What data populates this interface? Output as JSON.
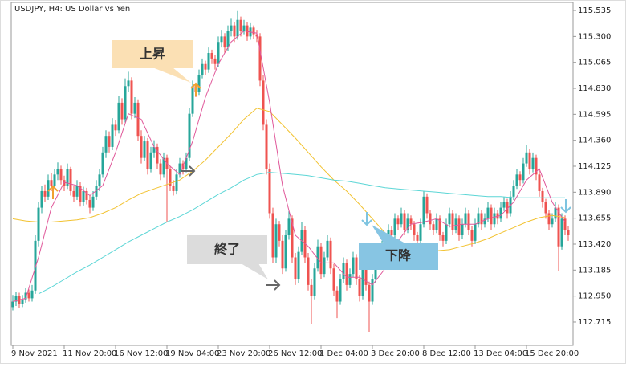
{
  "chart_data": {
    "type": "candlestick",
    "title": "USDJPY, H4:  US Dollar vs Yen",
    "up_color": "#26a69a",
    "down_color": "#ef5350",
    "xlim": [
      -0.5,
      174.5
    ],
    "ylim": [
      112.504,
      115.608
    ],
    "yticks": [
      115.535,
      {
        "value": 115.3,
        "label": "115.300"
      },
      115.065,
      {
        "value": 114.83,
        "label": "114.830"
      },
      114.595,
      {
        "value": 114.36,
        "label": "114.360"
      },
      114.125,
      {
        "value": 113.89,
        "label": "113.890"
      },
      113.655,
      {
        "value": 113.42,
        "label": "113.420"
      },
      113.185,
      {
        "value": 112.95,
        "label": "112.950"
      },
      112.715
    ],
    "xticks": [
      {
        "value": 0,
        "label": "9 Nov 2021"
      },
      {
        "value": 16,
        "label": "11 Nov 20:00"
      },
      {
        "value": 32,
        "label": "16 Nov 12:00"
      },
      {
        "value": 48,
        "label": "19 Nov 04:00"
      },
      {
        "value": 64,
        "label": "23 Nov 20:00"
      },
      {
        "value": 80,
        "label": "26 Nov 12:00"
      },
      {
        "value": 96,
        "label": "1 Dec 04:00"
      },
      {
        "value": 112,
        "label": "3 Dec 20:00"
      },
      {
        "value": 128,
        "label": "8 Dec 12:00"
      },
      {
        "value": 144,
        "label": "13 Dec 04:00"
      },
      {
        "value": 160,
        "label": "15 Dec 20:00"
      }
    ],
    "ohlc": [
      [
        112.85,
        112.96,
        112.82,
        112.9
      ],
      [
        112.9,
        112.99,
        112.86,
        112.95
      ],
      [
        112.95,
        112.98,
        112.84,
        112.88
      ],
      [
        112.88,
        112.96,
        112.85,
        112.92
      ],
      [
        112.92,
        113.02,
        112.89,
        112.98
      ],
      [
        112.98,
        113.01,
        112.9,
        112.93
      ],
      [
        112.93,
        113.05,
        112.9,
        113.0
      ],
      [
        113.0,
        113.5,
        112.97,
        113.45
      ],
      [
        113.45,
        113.8,
        113.4,
        113.75
      ],
      [
        113.75,
        113.95,
        113.7,
        113.9
      ],
      [
        113.9,
        113.96,
        113.8,
        113.85
      ],
      [
        113.85,
        114.05,
        113.82,
        114.0
      ],
      [
        114.0,
        114.06,
        113.9,
        113.95
      ],
      [
        113.95,
        114.1,
        113.92,
        114.05
      ],
      [
        114.05,
        114.16,
        114.0,
        114.1
      ],
      [
        114.1,
        114.13,
        113.96,
        114.0
      ],
      [
        114.0,
        114.04,
        113.9,
        113.95
      ],
      [
        113.95,
        114.15,
        113.92,
        114.1
      ],
      [
        114.1,
        114.12,
        113.86,
        113.9
      ],
      [
        113.9,
        113.95,
        113.8,
        113.85
      ],
      [
        113.85,
        114.0,
        113.82,
        113.95
      ],
      [
        113.95,
        113.98,
        113.76,
        113.8
      ],
      [
        113.8,
        113.94,
        113.77,
        113.9
      ],
      [
        113.9,
        113.93,
        113.78,
        113.82
      ],
      [
        113.82,
        113.86,
        113.7,
        113.75
      ],
      [
        113.75,
        113.9,
        113.72,
        113.85
      ],
      [
        113.85,
        114.0,
        113.82,
        113.95
      ],
      [
        113.95,
        114.1,
        113.9,
        114.05
      ],
      [
        114.05,
        114.3,
        114.02,
        114.25
      ],
      [
        114.25,
        114.45,
        114.2,
        114.4
      ],
      [
        114.4,
        114.44,
        114.25,
        114.3
      ],
      [
        114.3,
        114.56,
        114.27,
        114.5
      ],
      [
        114.5,
        114.54,
        114.4,
        114.45
      ],
      [
        114.45,
        114.76,
        114.42,
        114.7
      ],
      [
        114.7,
        114.74,
        114.5,
        114.55
      ],
      [
        114.55,
        114.92,
        114.52,
        114.85
      ],
      [
        114.85,
        114.98,
        114.8,
        114.9
      ],
      [
        114.9,
        114.93,
        114.55,
        114.6
      ],
      [
        114.6,
        114.75,
        114.56,
        114.7
      ],
      [
        114.7,
        114.73,
        114.35,
        114.4
      ],
      [
        114.4,
        114.45,
        114.15,
        114.2
      ],
      [
        114.2,
        114.4,
        114.17,
        114.35
      ],
      [
        114.35,
        114.38,
        114.05,
        114.1
      ],
      [
        114.1,
        114.3,
        114.07,
        114.25
      ],
      [
        114.25,
        114.36,
        114.2,
        114.3
      ],
      [
        114.3,
        114.33,
        114.1,
        114.15
      ],
      [
        114.15,
        114.19,
        114.0,
        114.05
      ],
      [
        114.05,
        114.25,
        114.02,
        114.2
      ],
      [
        114.2,
        114.23,
        113.62,
        114.1
      ],
      [
        114.1,
        114.13,
        113.9,
        113.95
      ],
      [
        113.95,
        114.0,
        113.86,
        113.9
      ],
      [
        113.9,
        114.1,
        113.87,
        114.05
      ],
      [
        114.05,
        114.2,
        114.02,
        114.15
      ],
      [
        114.15,
        114.18,
        114.05,
        114.1
      ],
      [
        114.1,
        114.25,
        114.07,
        114.2
      ],
      [
        114.2,
        114.65,
        114.17,
        114.6
      ],
      [
        114.6,
        114.9,
        114.57,
        114.85
      ],
      [
        114.85,
        114.88,
        114.75,
        114.8
      ],
      [
        114.8,
        115.0,
        114.77,
        114.95
      ],
      [
        114.95,
        115.1,
        114.92,
        115.05
      ],
      [
        115.05,
        115.08,
        114.95,
        115.0
      ],
      [
        115.0,
        115.2,
        114.97,
        115.15
      ],
      [
        115.15,
        115.18,
        115.05,
        115.1
      ],
      [
        115.1,
        115.13,
        115.0,
        115.05
      ],
      [
        115.05,
        115.3,
        115.02,
        115.25
      ],
      [
        115.25,
        115.36,
        115.2,
        115.3
      ],
      [
        115.3,
        115.33,
        115.15,
        115.2
      ],
      [
        115.2,
        115.4,
        115.17,
        115.35
      ],
      [
        115.35,
        115.46,
        115.3,
        115.4
      ],
      [
        115.4,
        115.43,
        115.25,
        115.3
      ],
      [
        115.3,
        115.53,
        115.27,
        115.45
      ],
      [
        115.45,
        115.48,
        115.3,
        115.35
      ],
      [
        115.35,
        115.45,
        115.32,
        115.4
      ],
      [
        115.4,
        115.43,
        115.26,
        115.3
      ],
      [
        115.3,
        115.42,
        115.27,
        115.38
      ],
      [
        115.38,
        115.4,
        115.28,
        115.32
      ],
      [
        115.32,
        115.36,
        115.25,
        115.3
      ],
      [
        115.3,
        115.33,
        114.85,
        114.9
      ],
      [
        114.9,
        114.95,
        114.45,
        114.5
      ],
      [
        114.5,
        114.55,
        114.05,
        114.1
      ],
      [
        114.1,
        114.15,
        113.65,
        113.7
      ],
      [
        113.7,
        113.75,
        113.25,
        113.3
      ],
      [
        113.3,
        113.65,
        113.25,
        113.6
      ],
      [
        113.6,
        113.63,
        113.4,
        113.45
      ],
      [
        113.45,
        113.5,
        113.15,
        113.2
      ],
      [
        113.2,
        113.55,
        113.17,
        113.5
      ],
      [
        113.5,
        113.72,
        113.46,
        113.65
      ],
      [
        113.65,
        113.68,
        113.25,
        113.3
      ],
      [
        113.3,
        113.34,
        113.05,
        113.1
      ],
      [
        113.1,
        113.4,
        113.07,
        113.35
      ],
      [
        113.35,
        113.62,
        113.32,
        113.55
      ],
      [
        113.55,
        113.58,
        113.25,
        113.3
      ],
      [
        113.3,
        113.34,
        113.0,
        113.05
      ],
      [
        113.05,
        113.1,
        112.7,
        112.95
      ],
      [
        112.95,
        113.25,
        112.92,
        113.2
      ],
      [
        113.2,
        113.46,
        113.17,
        113.4
      ],
      [
        113.4,
        113.43,
        113.1,
        113.15
      ],
      [
        113.15,
        113.35,
        113.12,
        113.3
      ],
      [
        113.3,
        113.5,
        113.27,
        113.45
      ],
      [
        113.45,
        113.48,
        113.15,
        113.2
      ],
      [
        113.2,
        113.24,
        112.95,
        113.0
      ],
      [
        113.0,
        113.04,
        112.75,
        112.9
      ],
      [
        112.9,
        113.15,
        112.87,
        113.1
      ],
      [
        113.1,
        113.3,
        113.07,
        113.25
      ],
      [
        113.25,
        113.28,
        113.0,
        113.05
      ],
      [
        113.05,
        113.2,
        113.02,
        113.15
      ],
      [
        113.15,
        113.35,
        113.12,
        113.3
      ],
      [
        113.3,
        113.33,
        113.05,
        113.1
      ],
      [
        113.1,
        113.14,
        112.9,
        112.95
      ],
      [
        112.95,
        113.25,
        112.92,
        113.2
      ],
      [
        113.2,
        113.23,
        113.0,
        113.05
      ],
      [
        113.05,
        113.08,
        112.62,
        112.9
      ],
      [
        112.9,
        113.15,
        112.87,
        113.1
      ],
      [
        113.1,
        113.35,
        113.07,
        113.3
      ],
      [
        113.3,
        113.33,
        113.2,
        113.25
      ],
      [
        113.25,
        113.45,
        113.22,
        113.4
      ],
      [
        113.4,
        113.43,
        113.3,
        113.35
      ],
      [
        113.35,
        113.6,
        113.32,
        113.55
      ],
      [
        113.55,
        113.58,
        113.45,
        113.5
      ],
      [
        113.5,
        113.7,
        113.47,
        113.65
      ],
      [
        113.65,
        113.68,
        113.55,
        113.6
      ],
      [
        113.6,
        113.75,
        113.57,
        113.7
      ],
      [
        113.7,
        113.73,
        113.5,
        113.55
      ],
      [
        113.55,
        113.7,
        113.52,
        113.65
      ],
      [
        113.65,
        113.68,
        113.55,
        113.6
      ],
      [
        113.6,
        113.63,
        113.45,
        113.5
      ],
      [
        113.5,
        113.53,
        113.4,
        113.45
      ],
      [
        113.45,
        113.65,
        113.42,
        113.6
      ],
      [
        113.6,
        113.9,
        113.57,
        113.85
      ],
      [
        113.85,
        113.88,
        113.65,
        113.7
      ],
      [
        113.7,
        113.73,
        113.55,
        113.6
      ],
      [
        113.6,
        113.63,
        113.5,
        113.55
      ],
      [
        113.55,
        113.7,
        113.52,
        113.65
      ],
      [
        113.65,
        113.68,
        113.45,
        113.5
      ],
      [
        113.5,
        113.53,
        113.4,
        113.45
      ],
      [
        113.45,
        113.65,
        113.42,
        113.6
      ],
      [
        113.6,
        113.75,
        113.57,
        113.7
      ],
      [
        113.7,
        113.73,
        113.5,
        113.55
      ],
      [
        113.55,
        113.7,
        113.52,
        113.65
      ],
      [
        113.65,
        113.68,
        113.45,
        113.5
      ],
      [
        113.5,
        113.65,
        113.47,
        113.6
      ],
      [
        113.6,
        113.75,
        113.57,
        113.7
      ],
      [
        113.7,
        113.73,
        113.5,
        113.55
      ],
      [
        113.55,
        113.58,
        113.4,
        113.45
      ],
      [
        113.45,
        113.65,
        113.42,
        113.6
      ],
      [
        113.6,
        113.75,
        113.57,
        113.7
      ],
      [
        113.7,
        113.73,
        113.55,
        113.6
      ],
      [
        113.6,
        113.7,
        113.57,
        113.65
      ],
      [
        113.65,
        113.8,
        113.62,
        113.75
      ],
      [
        113.75,
        113.78,
        113.55,
        113.6
      ],
      [
        113.6,
        113.75,
        113.57,
        113.7
      ],
      [
        113.7,
        113.73,
        113.6,
        113.65
      ],
      [
        113.65,
        113.8,
        113.62,
        113.75
      ],
      [
        113.75,
        113.85,
        113.72,
        113.8
      ],
      [
        113.8,
        113.83,
        113.65,
        113.7
      ],
      [
        113.7,
        113.9,
        113.67,
        113.85
      ],
      [
        113.85,
        114.0,
        113.82,
        113.95
      ],
      [
        113.95,
        114.1,
        113.92,
        114.05
      ],
      [
        114.05,
        114.08,
        113.95,
        114.0
      ],
      [
        114.0,
        114.2,
        113.97,
        114.15
      ],
      [
        114.15,
        114.32,
        114.12,
        114.25
      ],
      [
        114.25,
        114.28,
        114.05,
        114.1
      ],
      [
        114.1,
        114.25,
        114.07,
        114.2
      ],
      [
        114.2,
        114.23,
        114.0,
        114.05
      ],
      [
        114.05,
        114.08,
        113.85,
        113.9
      ],
      [
        113.9,
        113.93,
        113.75,
        113.8
      ],
      [
        113.8,
        113.83,
        113.65,
        113.7
      ],
      [
        113.7,
        113.73,
        113.55,
        113.6
      ],
      [
        113.6,
        113.7,
        113.57,
        113.65
      ],
      [
        113.65,
        113.8,
        113.62,
        113.75
      ],
      [
        113.75,
        113.78,
        113.18,
        113.4
      ],
      [
        113.4,
        113.7,
        113.37,
        113.65
      ],
      [
        113.65,
        113.68,
        113.5,
        113.55
      ],
      [
        113.55,
        113.58,
        113.45,
        113.5
      ]
    ],
    "series": [
      {
        "color": "#f2c230",
        "x": [
          0,
          4,
          8,
          12,
          16,
          20,
          24,
          28,
          32,
          36,
          40,
          44,
          48,
          52,
          56,
          60,
          64,
          68,
          72,
          76,
          80,
          84,
          88,
          92,
          96,
          100,
          104,
          108,
          112,
          116,
          120,
          124,
          128,
          132,
          136,
          140,
          144,
          148,
          152,
          156,
          160,
          164,
          168,
          172
        ],
        "values": [
          113.65,
          113.63,
          113.62,
          113.62,
          113.63,
          113.64,
          113.66,
          113.7,
          113.75,
          113.82,
          113.88,
          113.92,
          113.96,
          114.0,
          114.08,
          114.18,
          114.3,
          114.42,
          114.55,
          114.65,
          114.62,
          114.5,
          114.38,
          114.25,
          114.12,
          114.0,
          113.9,
          113.78,
          113.65,
          113.52,
          113.45,
          113.4,
          113.37,
          113.36,
          113.37,
          113.4,
          113.43,
          113.47,
          113.52,
          113.57,
          113.62,
          113.66,
          113.68,
          113.66
        ]
      },
      {
        "color": "#5cd6d6",
        "x": [
          8,
          12,
          16,
          20,
          24,
          28,
          32,
          36,
          40,
          44,
          48,
          52,
          56,
          60,
          64,
          68,
          72,
          76,
          80,
          84,
          88,
          92,
          96,
          100,
          104,
          108,
          112,
          116,
          120,
          124,
          128,
          132,
          136,
          140,
          144,
          148,
          152,
          156,
          160,
          164,
          168,
          172
        ],
        "values": [
          112.97,
          113.03,
          113.1,
          113.17,
          113.23,
          113.3,
          113.37,
          113.44,
          113.5,
          113.56,
          113.62,
          113.67,
          113.73,
          113.8,
          113.87,
          113.93,
          114.0,
          114.05,
          114.07,
          114.06,
          114.05,
          114.04,
          114.02,
          114.0,
          113.99,
          113.97,
          113.95,
          113.93,
          113.92,
          113.91,
          113.9,
          113.89,
          113.88,
          113.87,
          113.86,
          113.85,
          113.85,
          113.84,
          113.84,
          113.84,
          113.84,
          113.84
        ]
      },
      {
        "color": "#e0589a",
        "x": [
          0,
          4,
          8,
          12,
          16,
          20,
          24,
          28,
          32,
          36,
          40,
          44,
          48,
          52,
          56,
          60,
          64,
          68,
          72,
          76,
          80,
          84,
          88,
          92,
          96,
          100,
          104,
          108,
          112,
          116,
          120,
          124,
          128,
          132,
          136,
          140,
          144,
          148,
          152,
          156,
          160,
          164,
          168,
          172
        ],
        "values": [
          112.9,
          112.93,
          113.3,
          113.75,
          113.98,
          113.95,
          113.86,
          113.95,
          114.25,
          114.6,
          114.55,
          114.3,
          114.15,
          114.05,
          114.35,
          114.75,
          115.05,
          115.25,
          115.35,
          115.33,
          114.7,
          113.95,
          113.5,
          113.4,
          113.25,
          113.25,
          113.12,
          113.12,
          113.05,
          113.2,
          113.45,
          113.6,
          113.62,
          113.65,
          113.58,
          113.6,
          113.6,
          113.65,
          113.68,
          113.8,
          114.0,
          114.1,
          113.8,
          113.62
        ]
      }
    ],
    "annotations": [
      "上昇",
      "終了",
      "下降"
    ]
  }
}
